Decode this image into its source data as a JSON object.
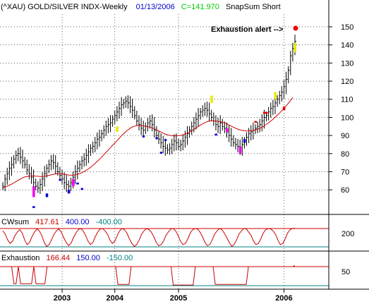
{
  "chart_data": [
    {
      "type": "line",
      "title": "(^XAU) GOLD/SILVER INDX-Weekly",
      "date": "01/13/2006",
      "last_close_label": "C=141.970",
      "study_label": "SnapSum Short",
      "annotation": "Exhaustion alert -->",
      "ylim": [
        48,
        157
      ],
      "yticks": [
        60,
        70,
        80,
        90,
        100,
        110,
        120,
        130,
        140,
        150
      ],
      "xticks": [
        "2003",
        "2004",
        "2005",
        "2006"
      ],
      "grid": true,
      "series": [
        {
          "style": "weekly-bars",
          "color": "#000000",
          "values": [
            62,
            66,
            69,
            72,
            74,
            77,
            79,
            80,
            78,
            76,
            74,
            71,
            69,
            67,
            64,
            62,
            61,
            63,
            66,
            69,
            72,
            74,
            76,
            75,
            73,
            70,
            68,
            66,
            64,
            63,
            62,
            64,
            67,
            70,
            72,
            74,
            76,
            77,
            79,
            81,
            83,
            84,
            86,
            88,
            89,
            91,
            93,
            95,
            96,
            97,
            99,
            101,
            103,
            105,
            107,
            108,
            109,
            108,
            106,
            104,
            101,
            98,
            96,
            94,
            93,
            95,
            97,
            98,
            96,
            93,
            90,
            88,
            86,
            84,
            83,
            82,
            83,
            85,
            87,
            86,
            84,
            85,
            87,
            89,
            91,
            93,
            95,
            97,
            99,
            101,
            103,
            104,
            105,
            104,
            102,
            100,
            98,
            96,
            95,
            97,
            95,
            94,
            92,
            90,
            88,
            86,
            85,
            84,
            83,
            85,
            87,
            89,
            91,
            92,
            93,
            94,
            95,
            96,
            98,
            100,
            101,
            103,
            105,
            106,
            108,
            110,
            112,
            114,
            117,
            121,
            126,
            134,
            138,
            141.97
          ]
        },
        {
          "style": "moving-average",
          "color": "#cc0000",
          "values": [
            61,
            61.5,
            62,
            62.6,
            63.2,
            63.9,
            64.6,
            65.3,
            66,
            66.6,
            67.1,
            67.4,
            67.6,
            67.7,
            67.7,
            67.6,
            67.5,
            67.4,
            67.4,
            67.5,
            67.7,
            68,
            68.3,
            68.6,
            68.8,
            68.9,
            68.9,
            68.8,
            68.6,
            68.4,
            68.2,
            68.1,
            68.1,
            68.3,
            68.6,
            69,
            69.5,
            70.1,
            70.8,
            71.6,
            72.5,
            73.5,
            74.6,
            75.7,
            76.9,
            78.1,
            79.4,
            80.7,
            82,
            83.3,
            84.6,
            85.9,
            87.2,
            88.5,
            89.8,
            91,
            92.1,
            93.1,
            94,
            94.7,
            95.2,
            95.5,
            95.6,
            95.5,
            95.3,
            95.1,
            94.9,
            94.6,
            94.2,
            93.7,
            93.1,
            92.5,
            91.9,
            91.3,
            90.8,
            90.4,
            90.1,
            89.9,
            89.8,
            89.8,
            89.9,
            90.1,
            90.4,
            90.8,
            91.3,
            91.9,
            92.6,
            93.4,
            94.2,
            95,
            95.8,
            96.5,
            97.1,
            97.6,
            97.9,
            98.1,
            98.1,
            98,
            97.8,
            97.6,
            97.3,
            96.9,
            96.4,
            95.8,
            95.2,
            94.6,
            94,
            93.5,
            93.1,
            92.8,
            92.6,
            92.5,
            92.5,
            92.6,
            92.8,
            93.1,
            93.5,
            94,
            94.6,
            95.3,
            96.1,
            97,
            98,
            99,
            100.1,
            101.2,
            102.4,
            103.6,
            104.9,
            106.3,
            107.8,
            109.4,
            111
          ]
        }
      ]
    },
    {
      "type": "line",
      "label": "CWsum",
      "last_value": "417.61",
      "upper_level": "400.00",
      "lower_level": "-400.00",
      "ytick_label": "200",
      "series": [
        {
          "style": "oscillator",
          "color": "#cc0000",
          "values": [
            300,
            150,
            -100,
            -250,
            -150,
            100,
            250,
            350,
            200,
            -100,
            -300,
            -200,
            50,
            250,
            380,
            300,
            100,
            -200,
            -380,
            -300,
            -100,
            150,
            300,
            380,
            250,
            0,
            -200,
            -350,
            -250,
            0,
            200,
            350,
            400,
            300,
            100,
            -150,
            -300,
            -200,
            50,
            250,
            380,
            400,
            300,
            150,
            -100,
            -250,
            -150,
            100,
            300,
            400,
            350,
            200,
            -50,
            -250,
            -380,
            -300,
            -100,
            150,
            300,
            400,
            350,
            250,
            50,
            -200,
            -350,
            -300,
            -150,
            100,
            250,
            380,
            400,
            300,
            100,
            -150,
            -300,
            -250,
            -50,
            200,
            350,
            400,
            380,
            250,
            50,
            -200,
            -350,
            -300,
            -100,
            150,
            300,
            400,
            350,
            200,
            0,
            -200,
            -380,
            -300,
            -100,
            150,
            300,
            400,
            380,
            250,
            100,
            -150,
            -300,
            -250,
            -50,
            200,
            350,
            400,
            380,
            300,
            150,
            -100,
            -300,
            -250,
            -50,
            200,
            350,
            400,
            417.61
          ]
        }
      ]
    },
    {
      "type": "line",
      "label": "Exhaustion",
      "last_value": "166.44",
      "upper_level": "150.00",
      "lower_level": "-150.00",
      "ytick_label": "50",
      "series": [
        {
          "style": "oscillator",
          "color": "#cc0000",
          "values": [
            150,
            150,
            150,
            150,
            150,
            -120,
            -120,
            150,
            -120,
            -120,
            -120,
            -120,
            -120,
            -120,
            150,
            -120,
            -120,
            -120,
            -120,
            -120,
            150,
            150,
            150,
            150,
            150,
            150,
            150,
            150,
            150,
            150,
            150,
            150,
            150,
            150,
            150,
            150,
            150,
            150,
            150,
            150,
            150,
            150,
            150,
            150,
            150,
            150,
            150,
            150,
            150,
            150,
            150,
            150,
            -130,
            -130,
            -130,
            -130,
            -130,
            -130,
            150,
            150,
            150,
            150,
            150,
            150,
            150,
            150,
            150,
            150,
            150,
            150,
            150,
            150,
            150,
            150,
            150,
            150,
            150,
            -140,
            -140,
            -140,
            -140,
            -140,
            -140,
            -140,
            -140,
            -140,
            -140,
            150,
            150,
            150,
            150,
            150,
            150,
            150,
            150,
            150,
            -130,
            -130,
            -130,
            -130,
            -130,
            -130,
            -130,
            -130,
            -130,
            -130,
            -130,
            -130,
            -130,
            -130,
            -130,
            150,
            150,
            150,
            150,
            150,
            150,
            150,
            150,
            150,
            150,
            150,
            150,
            150,
            150,
            150,
            150,
            150,
            150,
            150,
            150,
            150,
            166.44
          ]
        }
      ]
    }
  ],
  "colors": {
    "background": "#ffffff",
    "grid": "#000000",
    "header_date": "#0000cc",
    "header_close": "#00cc00",
    "cwsum_value": "#cc0000",
    "upper_level": "#0000cc",
    "lower_level": "#008080",
    "alert_dot": "#ee0000",
    "blue_marker": "#0000cc",
    "magenta_marker": "#ee00ee",
    "yellow_marker": "#e8e800",
    "red_marker": "#ee0000"
  }
}
